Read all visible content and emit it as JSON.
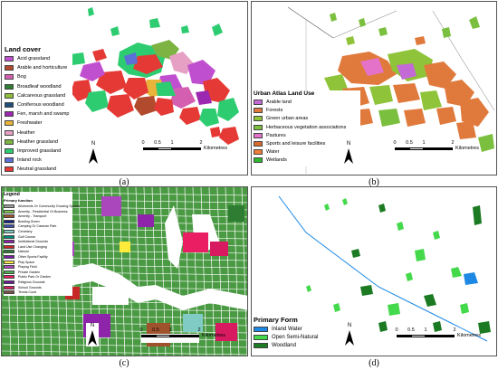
{
  "panels": {
    "a": {
      "caption": "(a)",
      "legend_title": "Land cover",
      "legend": [
        {
          "label": "Acid grassland",
          "color": "#c04fd0"
        },
        {
          "label": "Arable and horticulture",
          "color": "#b24a2e"
        },
        {
          "label": "Bog",
          "color": "#d45fb0"
        },
        {
          "label": "Broadleaf woodland",
          "color": "#2e7d32"
        },
        {
          "label": "Calcareous grassland",
          "color": "#8fbc3a"
        },
        {
          "label": "Coniferous woodland",
          "color": "#1f4e79"
        },
        {
          "label": "Fen, marsh and swamp",
          "color": "#9c27b0"
        },
        {
          "label": "Freshwater",
          "color": "#e8b53a"
        },
        {
          "label": "Heather",
          "color": "#e6a0c4"
        },
        {
          "label": "Heather grassland",
          "color": "#7cb342"
        },
        {
          "label": "Improved grassland",
          "color": "#2ecc71"
        },
        {
          "label": "Inland rock",
          "color": "#5b6fd6"
        },
        {
          "label": "Neutral grassland",
          "color": "#e53935"
        }
      ],
      "north": "N",
      "scale": {
        "ticks": [
          "0",
          "0.5",
          "1",
          "2"
        ],
        "unit": "Kilometres"
      }
    },
    "b": {
      "caption": "(b)",
      "legend_title": "Urban Atlas Land Use",
      "legend": [
        {
          "label": "Arable land",
          "color": "#c46ad6"
        },
        {
          "label": "Forests",
          "color": "#e07a3c"
        },
        {
          "label": "Green urban areas",
          "color": "#8fc43a"
        },
        {
          "label": "Herbaceous vegetation associations",
          "color": "#7bbf3f"
        },
        {
          "label": "Pastures",
          "color": "#e472c8"
        },
        {
          "label": "Sports and leisure facilities",
          "color": "#d86a2c"
        },
        {
          "label": "Water",
          "color": "#f07d3a"
        },
        {
          "label": "Wetlands",
          "color": "#2eb82e"
        }
      ],
      "north": "N",
      "scale": {
        "ticks": [
          "0",
          "0.5",
          "1",
          "2"
        ],
        "unit": "Kilometres"
      }
    },
    "c": {
      "caption": "(c)",
      "legend_title": "Legend",
      "legend_subtitle": "Primary function",
      "legend": [
        {
          "label": "Allotments Or Community Growing Spaces",
          "color": "#9e9e9e"
        },
        {
          "label": "Amenity - Residential Or Business",
          "color": "#7ec850"
        },
        {
          "label": "Amenity - Transport",
          "color": "#a0522d"
        },
        {
          "label": "Bowling Green",
          "color": "#1a237e"
        },
        {
          "label": "Camping Or Caravan Park",
          "color": "#3f51b5"
        },
        {
          "label": "Cemetery",
          "color": "#80cbc4"
        },
        {
          "label": "Golf Course",
          "color": "#00897b"
        },
        {
          "label": "Institutional Grounds",
          "color": "#8e24aa"
        },
        {
          "label": "Land Use Changing",
          "color": "#c62828"
        },
        {
          "label": "Natural",
          "color": "#2e7d32"
        },
        {
          "label": "Other Sports Facility",
          "color": "#7b1fa2"
        },
        {
          "label": "Play Space",
          "color": "#ffeb3b"
        },
        {
          "label": "Playing Field",
          "color": "#ab47bc"
        },
        {
          "label": "Private Garden",
          "color": "#4caf50"
        },
        {
          "label": "Public Park Or Garden",
          "color": "#e91e63"
        },
        {
          "label": "Religious Grounds",
          "color": "#6a1b9a"
        },
        {
          "label": "School Grounds",
          "color": "#d81b60"
        },
        {
          "label": "Tennis Court",
          "color": "#795548"
        }
      ],
      "north": "N",
      "scale": {
        "ticks": [
          "0",
          "0.5",
          "1",
          "2"
        ],
        "unit": "Kilometres"
      }
    },
    "d": {
      "caption": "(d)",
      "legend_title": "Primary Form",
      "legend": [
        {
          "label": "Inland Water",
          "color": "#1e88e5"
        },
        {
          "label": "Open Semi-Natural",
          "color": "#43d94a"
        },
        {
          "label": "Woodland",
          "color": "#1b7a22"
        }
      ],
      "north": "N",
      "scale": {
        "ticks": [
          "0",
          "0.5",
          "1",
          "2"
        ],
        "unit": "Kilometres"
      }
    }
  }
}
